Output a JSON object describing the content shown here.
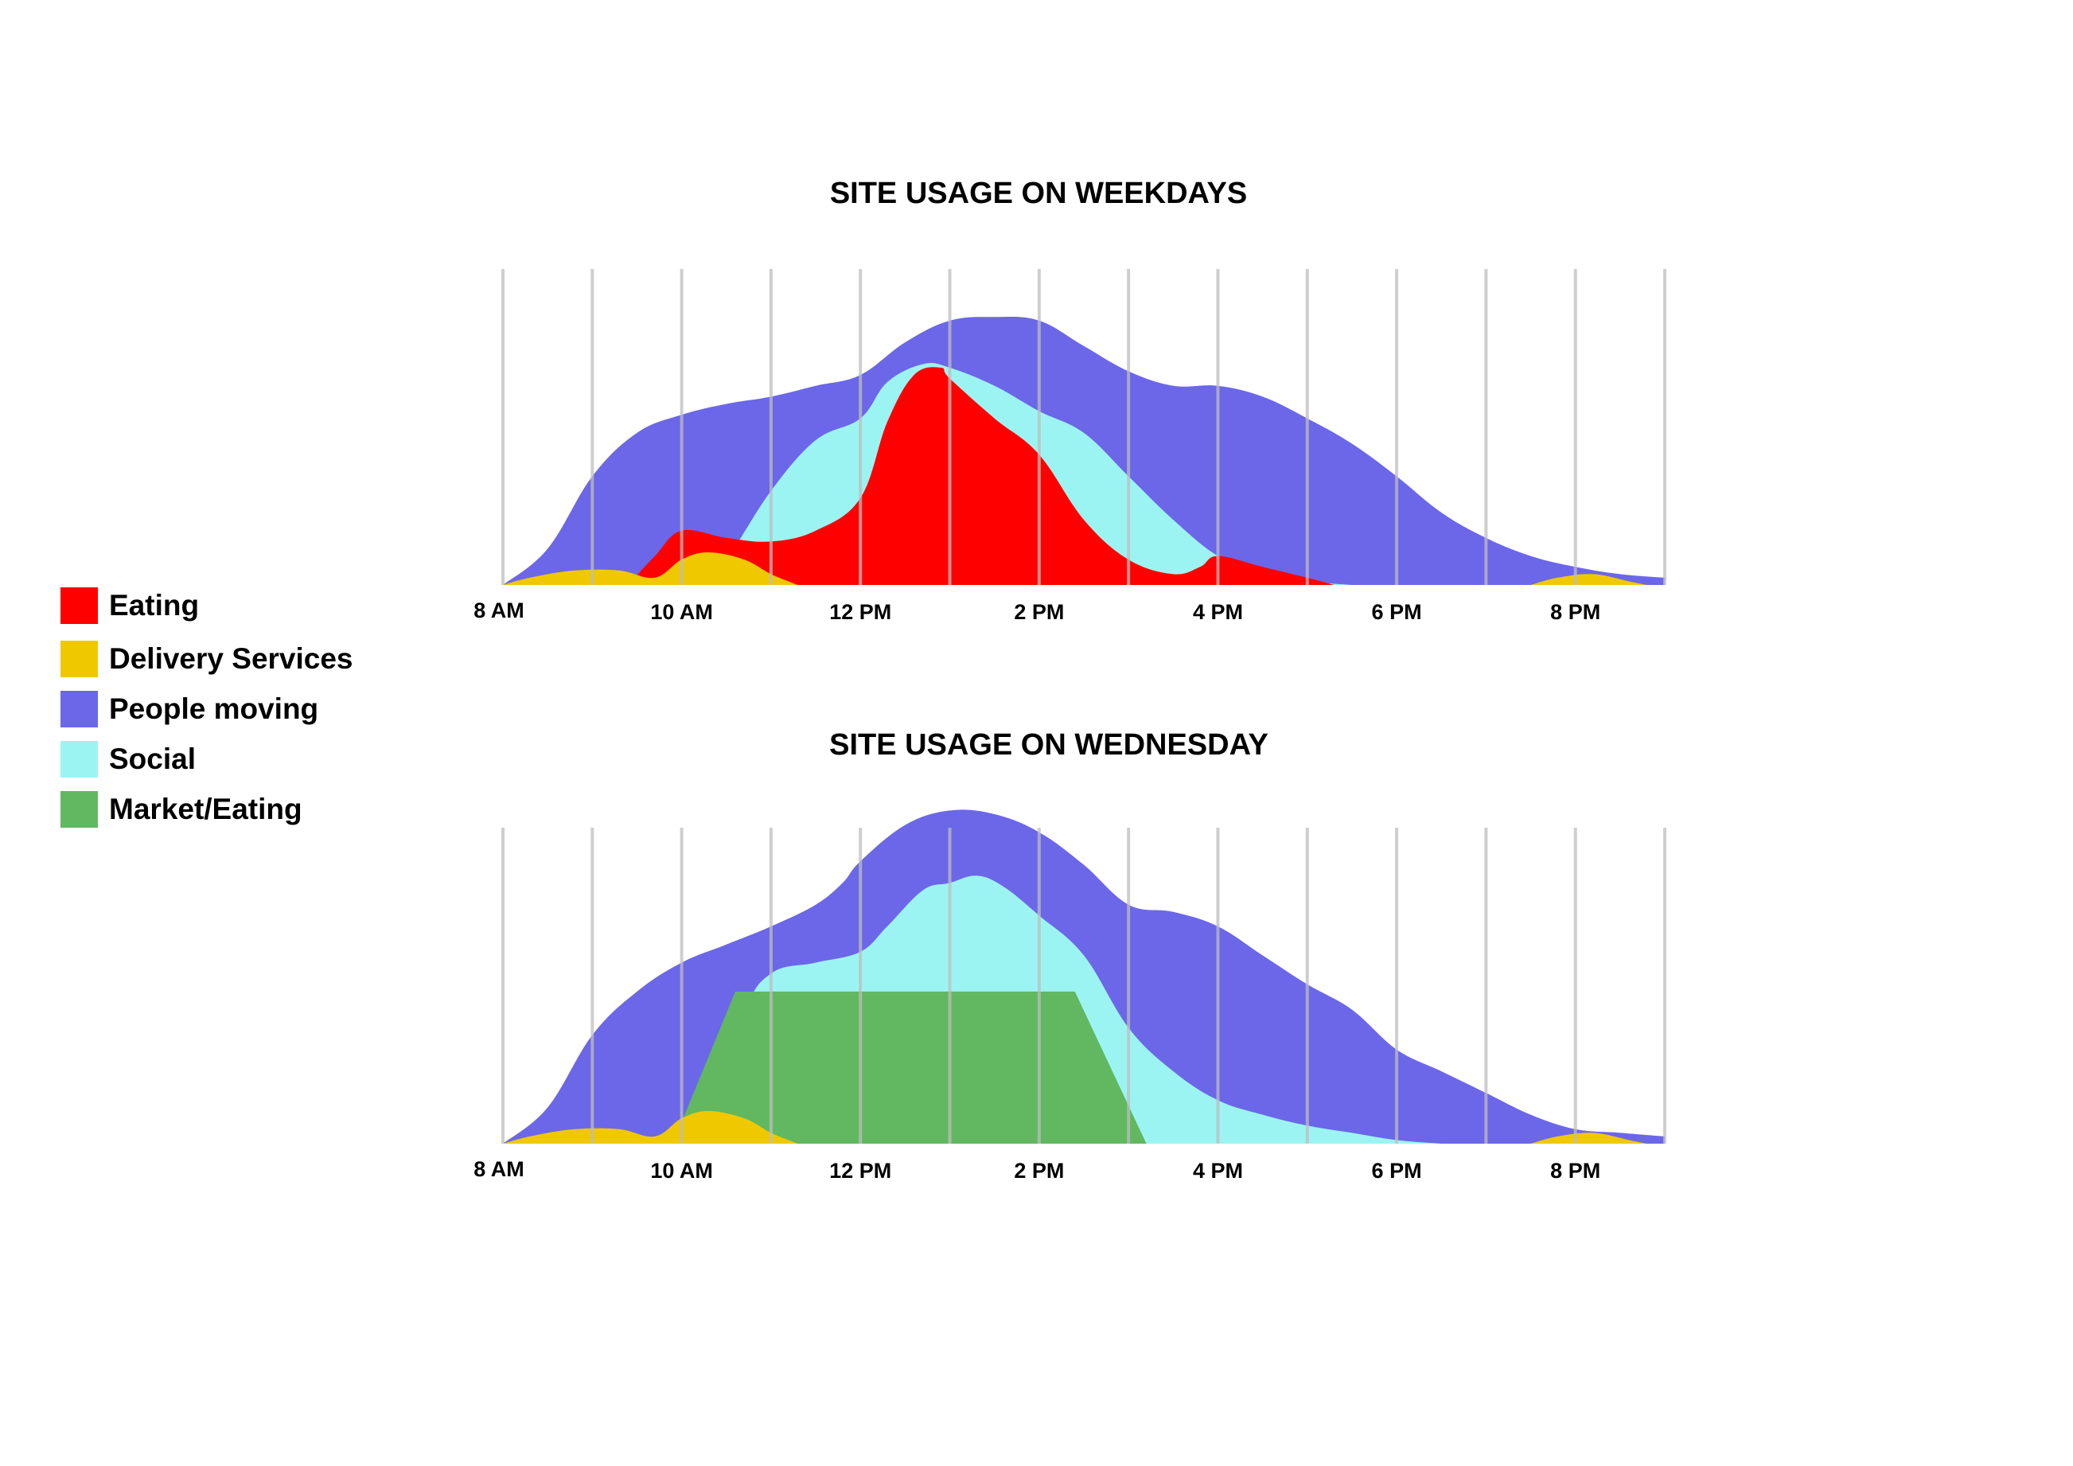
{
  "colors": {
    "Eating": "#ff0000",
    "Delivery Services": "#f0c800",
    "People moving": "#6b67e8",
    "Social": "#9cf4f2",
    "Market/Eating": "#61b860",
    "gridline": "#bdbdbd"
  },
  "legend": [
    {
      "label": "Eating",
      "color": "#ff0000"
    },
    {
      "label": "Delivery Services",
      "color": "#f0c800"
    },
    {
      "label": "People moving",
      "color": "#6b67e8"
    },
    {
      "label": "Social",
      "color": "#9cf4f2"
    },
    {
      "label": "Market/Eating",
      "color": "#61b860"
    }
  ],
  "chart_data": [
    {
      "type": "area",
      "title": "SITE USAGE ON WEEKDAYS",
      "x_ticks": [
        "8 AM",
        "10 AM",
        "12 PM",
        "2 PM",
        "4 PM",
        "6 PM",
        "8 PM"
      ],
      "x_tick_hours": [
        8,
        10,
        12,
        14,
        16,
        18,
        20
      ],
      "xlim": [
        8,
        21
      ],
      "ylim": [
        0,
        100
      ],
      "grid": true,
      "series": [
        {
          "name": "People moving",
          "color": "#6b67e8",
          "points": [
            [
              8,
              0
            ],
            [
              8.5,
              10
            ],
            [
              9,
              30
            ],
            [
              9.5,
              42
            ],
            [
              10,
              47
            ],
            [
              10.5,
              50
            ],
            [
              11,
              52
            ],
            [
              11.5,
              55
            ],
            [
              12,
              58
            ],
            [
              12.5,
              67
            ],
            [
              13,
              73
            ],
            [
              13.5,
              74
            ],
            [
              14,
              73
            ],
            [
              14.5,
              66
            ],
            [
              15,
              59
            ],
            [
              15.5,
              55
            ],
            [
              16,
              55
            ],
            [
              16.5,
              52
            ],
            [
              17,
              46
            ],
            [
              17.5,
              39
            ],
            [
              18,
              30
            ],
            [
              18.5,
              20
            ],
            [
              19,
              13
            ],
            [
              19.5,
              8
            ],
            [
              20,
              5
            ],
            [
              20.5,
              3
            ],
            [
              21,
              2
            ]
          ]
        },
        {
          "name": "Social",
          "color": "#9cf4f2",
          "points": [
            [
              10.2,
              0
            ],
            [
              10.5,
              7
            ],
            [
              11,
              26
            ],
            [
              11.5,
              40
            ],
            [
              12,
              46
            ],
            [
              12.3,
              56
            ],
            [
              12.7,
              61
            ],
            [
              13,
              60
            ],
            [
              13.5,
              55
            ],
            [
              14,
              48
            ],
            [
              14.5,
              42
            ],
            [
              15,
              30
            ],
            [
              15.5,
              18
            ],
            [
              16,
              8
            ],
            [
              16.5,
              3
            ],
            [
              17,
              1
            ],
            [
              17.5,
              0
            ]
          ]
        },
        {
          "name": "Eating",
          "color": "#ff0000",
          "points": [
            [
              9.4,
              0
            ],
            [
              9.7,
              8
            ],
            [
              10,
              15
            ],
            [
              10.5,
              13
            ],
            [
              11,
              12
            ],
            [
              11.5,
              15
            ],
            [
              12,
              24
            ],
            [
              12.3,
              45
            ],
            [
              12.6,
              58
            ],
            [
              12.9,
              60
            ],
            [
              13,
              57
            ],
            [
              13.5,
              46
            ],
            [
              14,
              36
            ],
            [
              14.5,
              18
            ],
            [
              15,
              7
            ],
            [
              15.5,
              3
            ],
            [
              15.8,
              5
            ],
            [
              16,
              8
            ],
            [
              16.5,
              5
            ],
            [
              17,
              2
            ],
            [
              17.3,
              0
            ]
          ]
        },
        {
          "name": "Delivery Services",
          "color": "#f0c800",
          "points": [
            [
              8,
              0
            ],
            [
              8.3,
              2
            ],
            [
              8.8,
              4
            ],
            [
              9.3,
              4
            ],
            [
              9.7,
              2
            ],
            [
              10,
              7
            ],
            [
              10.3,
              9
            ],
            [
              10.7,
              7
            ],
            [
              11,
              3
            ],
            [
              11.3,
              0
            ],
            [
              19.5,
              0
            ],
            [
              19.8,
              2
            ],
            [
              20.2,
              3
            ],
            [
              20.6,
              1
            ],
            [
              20.8,
              0
            ]
          ]
        }
      ]
    },
    {
      "type": "area",
      "title": "SITE USAGE ON WEDNESDAY",
      "x_ticks": [
        "8 AM",
        "10 AM",
        "12 PM",
        "2 PM",
        "4 PM",
        "6 PM",
        "8 PM"
      ],
      "x_tick_hours": [
        8,
        10,
        12,
        14,
        16,
        18,
        20
      ],
      "xlim": [
        8,
        21
      ],
      "ylim": [
        0,
        100
      ],
      "grid": true,
      "series": [
        {
          "name": "People moving",
          "color": "#6b67e8",
          "points": [
            [
              8,
              0
            ],
            [
              8.5,
              10
            ],
            [
              9,
              30
            ],
            [
              9.5,
              42
            ],
            [
              10,
              50
            ],
            [
              10.5,
              55
            ],
            [
              11,
              60
            ],
            [
              11.5,
              66
            ],
            [
              11.8,
              72
            ],
            [
              12,
              78
            ],
            [
              12.5,
              88
            ],
            [
              13,
              92
            ],
            [
              13.5,
              91
            ],
            [
              14,
              86
            ],
            [
              14.5,
              77
            ],
            [
              15,
              66
            ],
            [
              15.5,
              64
            ],
            [
              16,
              60
            ],
            [
              16.5,
              52
            ],
            [
              17,
              44
            ],
            [
              17.5,
              37
            ],
            [
              18,
              26
            ],
            [
              18.5,
              20
            ],
            [
              19,
              14
            ],
            [
              19.5,
              8
            ],
            [
              20,
              4
            ],
            [
              20.5,
              3
            ],
            [
              21,
              2
            ]
          ]
        },
        {
          "name": "Social",
          "color": "#9cf4f2",
          "points": [
            [
              10.4,
              0
            ],
            [
              10.7,
              35
            ],
            [
              11,
              47
            ],
            [
              11.5,
              50
            ],
            [
              12,
              53
            ],
            [
              12.3,
              60
            ],
            [
              12.7,
              70
            ],
            [
              13,
              72
            ],
            [
              13.3,
              74
            ],
            [
              13.6,
              71
            ],
            [
              14,
              63
            ],
            [
              14.5,
              52
            ],
            [
              15,
              32
            ],
            [
              15.5,
              20
            ],
            [
              16,
              12
            ],
            [
              16.5,
              8
            ],
            [
              17,
              5
            ],
            [
              17.5,
              3
            ],
            [
              18,
              1
            ],
            [
              18.5,
              0
            ]
          ]
        },
        {
          "name": "Market/Eating",
          "color": "#61b860",
          "points": [
            [
              9.9,
              0
            ],
            [
              10.6,
              42
            ],
            [
              14.4,
              42
            ],
            [
              15.2,
              0
            ]
          ]
        },
        {
          "name": "Delivery Services",
          "color": "#f0c800",
          "points": [
            [
              8,
              0
            ],
            [
              8.3,
              2
            ],
            [
              8.8,
              4
            ],
            [
              9.3,
              4
            ],
            [
              9.7,
              2
            ],
            [
              10,
              7
            ],
            [
              10.3,
              9
            ],
            [
              10.7,
              7
            ],
            [
              11,
              3
            ],
            [
              11.3,
              0
            ],
            [
              19.5,
              0
            ],
            [
              19.8,
              2
            ],
            [
              20.2,
              3
            ],
            [
              20.6,
              1
            ],
            [
              20.8,
              0
            ]
          ]
        }
      ]
    }
  ]
}
